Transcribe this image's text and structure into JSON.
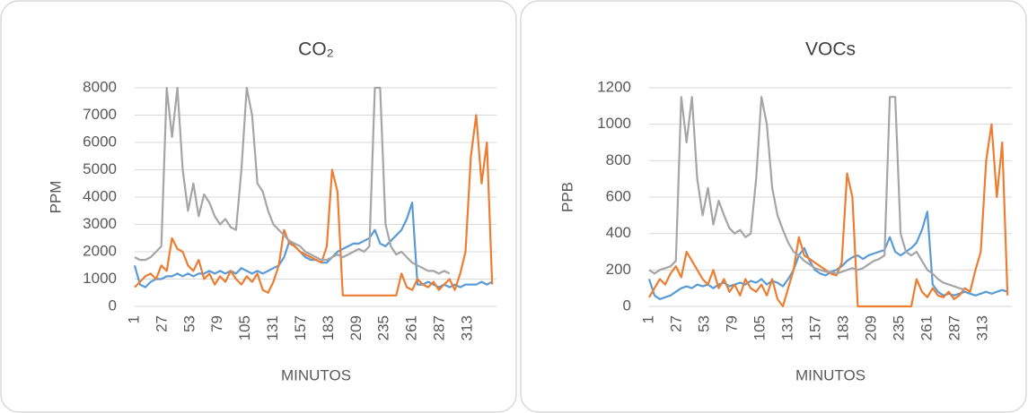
{
  "chart_data": [
    {
      "type": "line",
      "title": "CO₂",
      "y_label": "PPM",
      "x_label": "MINUTOS",
      "x": [
        1,
        6,
        11,
        16,
        21,
        26,
        31,
        36,
        41,
        46,
        51,
        56,
        61,
        66,
        71,
        76,
        81,
        86,
        91,
        96,
        101,
        106,
        111,
        116,
        121,
        126,
        131,
        136,
        141,
        146,
        151,
        156,
        161,
        166,
        171,
        176,
        181,
        186,
        191,
        196,
        201,
        206,
        211,
        216,
        221,
        226,
        231,
        236,
        241,
        246,
        251,
        256,
        261,
        266,
        271,
        276,
        281,
        286,
        291,
        296,
        301,
        306,
        311,
        316,
        321,
        326,
        331,
        336
      ],
      "xlim": [
        1,
        340
      ],
      "xticks": [
        1,
        27,
        53,
        79,
        105,
        131,
        157,
        183,
        209,
        235,
        261,
        287,
        313
      ],
      "ylim": [
        0,
        8000
      ],
      "yticks": [
        0,
        1000,
        2000,
        3000,
        4000,
        5000,
        6000,
        7000,
        8000
      ],
      "grid": true,
      "series": [
        {
          "color": "#5b9bd5",
          "values": [
            1500,
            800,
            700,
            900,
            1000,
            1000,
            1100,
            1100,
            1200,
            1100,
            1200,
            1100,
            1200,
            1200,
            1300,
            1200,
            1300,
            1200,
            1300,
            1200,
            1400,
            1300,
            1200,
            1300,
            1200,
            1300,
            1400,
            1500,
            1800,
            2400,
            2200,
            2000,
            1800,
            1700,
            1700,
            1600,
            1600,
            1800,
            2000,
            2100,
            2200,
            2300,
            2300,
            2400,
            2500,
            2800,
            2300,
            2200,
            2400,
            2600,
            2800,
            3200,
            3800,
            800,
            800,
            900,
            800,
            700,
            800,
            700,
            800,
            700,
            800,
            800,
            800,
            900,
            800,
            900
          ]
        },
        {
          "color": "#ed7d31",
          "values": [
            700,
            900,
            1100,
            1200,
            1000,
            1500,
            1300,
            2500,
            2100,
            2000,
            1500,
            1300,
            1700,
            1000,
            1200,
            800,
            1100,
            900,
            1300,
            1000,
            800,
            1100,
            900,
            1200,
            600,
            500,
            900,
            1500,
            2800,
            2300,
            2200,
            2000,
            1900,
            1800,
            1700,
            1600,
            2200,
            5000,
            4200,
            400,
            400,
            400,
            400,
            400,
            400,
            400,
            400,
            400,
            400,
            400,
            1200,
            700,
            600,
            1000,
            800,
            700,
            900,
            600,
            800,
            1000,
            600,
            1200,
            2000,
            5500,
            7000,
            4500,
            6000,
            800
          ]
        },
        {
          "color": "#a5a5a5",
          "values": [
            1800,
            1700,
            1700,
            1800,
            2000,
            2200,
            8000,
            6200,
            8000,
            5000,
            3500,
            4500,
            3300,
            4100,
            3800,
            3300,
            3000,
            3200,
            2900,
            2800,
            5000,
            8000,
            7000,
            4500,
            4200,
            3500,
            3000,
            2800,
            2600,
            2400,
            2300,
            2200,
            2000,
            1900,
            1800,
            1700,
            1700,
            1800,
            1900,
            1800,
            1900,
            2000,
            2100,
            2000,
            2200,
            8000,
            8000,
            3000,
            2200,
            1900,
            2000,
            1800,
            1600,
            1500,
            1400,
            1300,
            1300,
            1200,
            1300,
            1200,
            null,
            null,
            null,
            null,
            null,
            null,
            null,
            null
          ]
        }
      ]
    },
    {
      "type": "line",
      "title": "VOCs",
      "y_label": "PPB",
      "x_label": "MINUTOS",
      "x": [
        1,
        6,
        11,
        16,
        21,
        26,
        31,
        36,
        41,
        46,
        51,
        56,
        61,
        66,
        71,
        76,
        81,
        86,
        91,
        96,
        101,
        106,
        111,
        116,
        121,
        126,
        131,
        136,
        141,
        146,
        151,
        156,
        161,
        166,
        171,
        176,
        181,
        186,
        191,
        196,
        201,
        206,
        211,
        216,
        221,
        226,
        231,
        236,
        241,
        246,
        251,
        256,
        261,
        266,
        271,
        276,
        281,
        286,
        291,
        296,
        301,
        306,
        311,
        316,
        321,
        326,
        331,
        336
      ],
      "xlim": [
        1,
        340
      ],
      "xticks": [
        1,
        27,
        53,
        79,
        105,
        131,
        157,
        183,
        209,
        235,
        261,
        287,
        313
      ],
      "ylim": [
        0,
        1200
      ],
      "yticks": [
        0,
        200,
        400,
        600,
        800,
        1000,
        1200
      ],
      "grid": true,
      "series": [
        {
          "color": "#5b9bd5",
          "values": [
            150,
            60,
            40,
            50,
            60,
            80,
            100,
            110,
            100,
            120,
            110,
            120,
            100,
            120,
            130,
            110,
            120,
            130,
            120,
            140,
            130,
            150,
            120,
            140,
            130,
            110,
            150,
            200,
            280,
            320,
            250,
            200,
            180,
            170,
            190,
            200,
            220,
            250,
            270,
            280,
            260,
            280,
            290,
            300,
            310,
            380,
            300,
            280,
            300,
            320,
            350,
            420,
            520,
            120,
            80,
            60,
            70,
            60,
            70,
            80,
            70,
            60,
            70,
            80,
            70,
            80,
            90,
            80
          ]
        },
        {
          "color": "#ed7d31",
          "values": [
            50,
            100,
            150,
            120,
            180,
            220,
            160,
            300,
            250,
            200,
            150,
            120,
            200,
            100,
            150,
            80,
            120,
            60,
            150,
            100,
            80,
            120,
            60,
            150,
            40,
            0,
            100,
            200,
            380,
            280,
            260,
            240,
            220,
            200,
            180,
            170,
            240,
            730,
            600,
            0,
            0,
            0,
            0,
            0,
            0,
            0,
            0,
            0,
            0,
            0,
            150,
            80,
            50,
            100,
            60,
            50,
            80,
            40,
            60,
            100,
            80,
            200,
            300,
            800,
            1000,
            600,
            900,
            60
          ]
        },
        {
          "color": "#a5a5a5",
          "values": [
            200,
            180,
            200,
            210,
            220,
            250,
            1150,
            900,
            1150,
            700,
            500,
            650,
            450,
            580,
            500,
            430,
            400,
            420,
            380,
            400,
            700,
            1150,
            1000,
            650,
            500,
            420,
            350,
            300,
            280,
            250,
            230,
            210,
            200,
            190,
            190,
            180,
            190,
            200,
            210,
            200,
            210,
            230,
            250,
            260,
            280,
            1150,
            1150,
            400,
            300,
            280,
            300,
            250,
            200,
            180,
            150,
            130,
            120,
            110,
            100,
            90,
            null,
            null,
            null,
            null,
            null,
            null,
            null,
            null
          ]
        }
      ]
    }
  ]
}
